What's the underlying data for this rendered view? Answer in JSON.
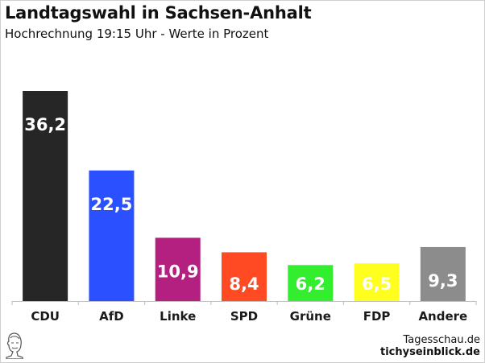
{
  "header": {
    "title": "Landtagswahl in Sachsen-Anhalt",
    "subtitle": "Hochrechnung 19:15 Uhr - Werte in Prozent"
  },
  "footer": {
    "source": "Tagesschau.de",
    "site": "tichyseinblick.de",
    "logo_icon": "bust-portrait-logo-icon"
  },
  "chart_data": {
    "type": "bar",
    "title": "Landtagswahl in Sachsen-Anhalt",
    "subtitle": "Hochrechnung 19:15 Uhr - Werte in Prozent",
    "categories": [
      "CDU",
      "AfD",
      "Linke",
      "SPD",
      "Grüne",
      "FDP",
      "Andere"
    ],
    "values": [
      36.2,
      22.5,
      10.9,
      8.4,
      6.2,
      6.5,
      9.3
    ],
    "value_labels": [
      "36,2",
      "22,5",
      "10,9",
      "8,4",
      "6,2",
      "6,5",
      "9,3"
    ],
    "colors": [
      "#262626",
      "#2b50ff",
      "#b3207f",
      "#ff4a24",
      "#33ee2f",
      "#ffff1f",
      "#8c8c8c"
    ],
    "xlabel": "",
    "ylabel": "",
    "ylim": [
      0,
      36.2
    ],
    "grid": false,
    "legend": "none"
  }
}
